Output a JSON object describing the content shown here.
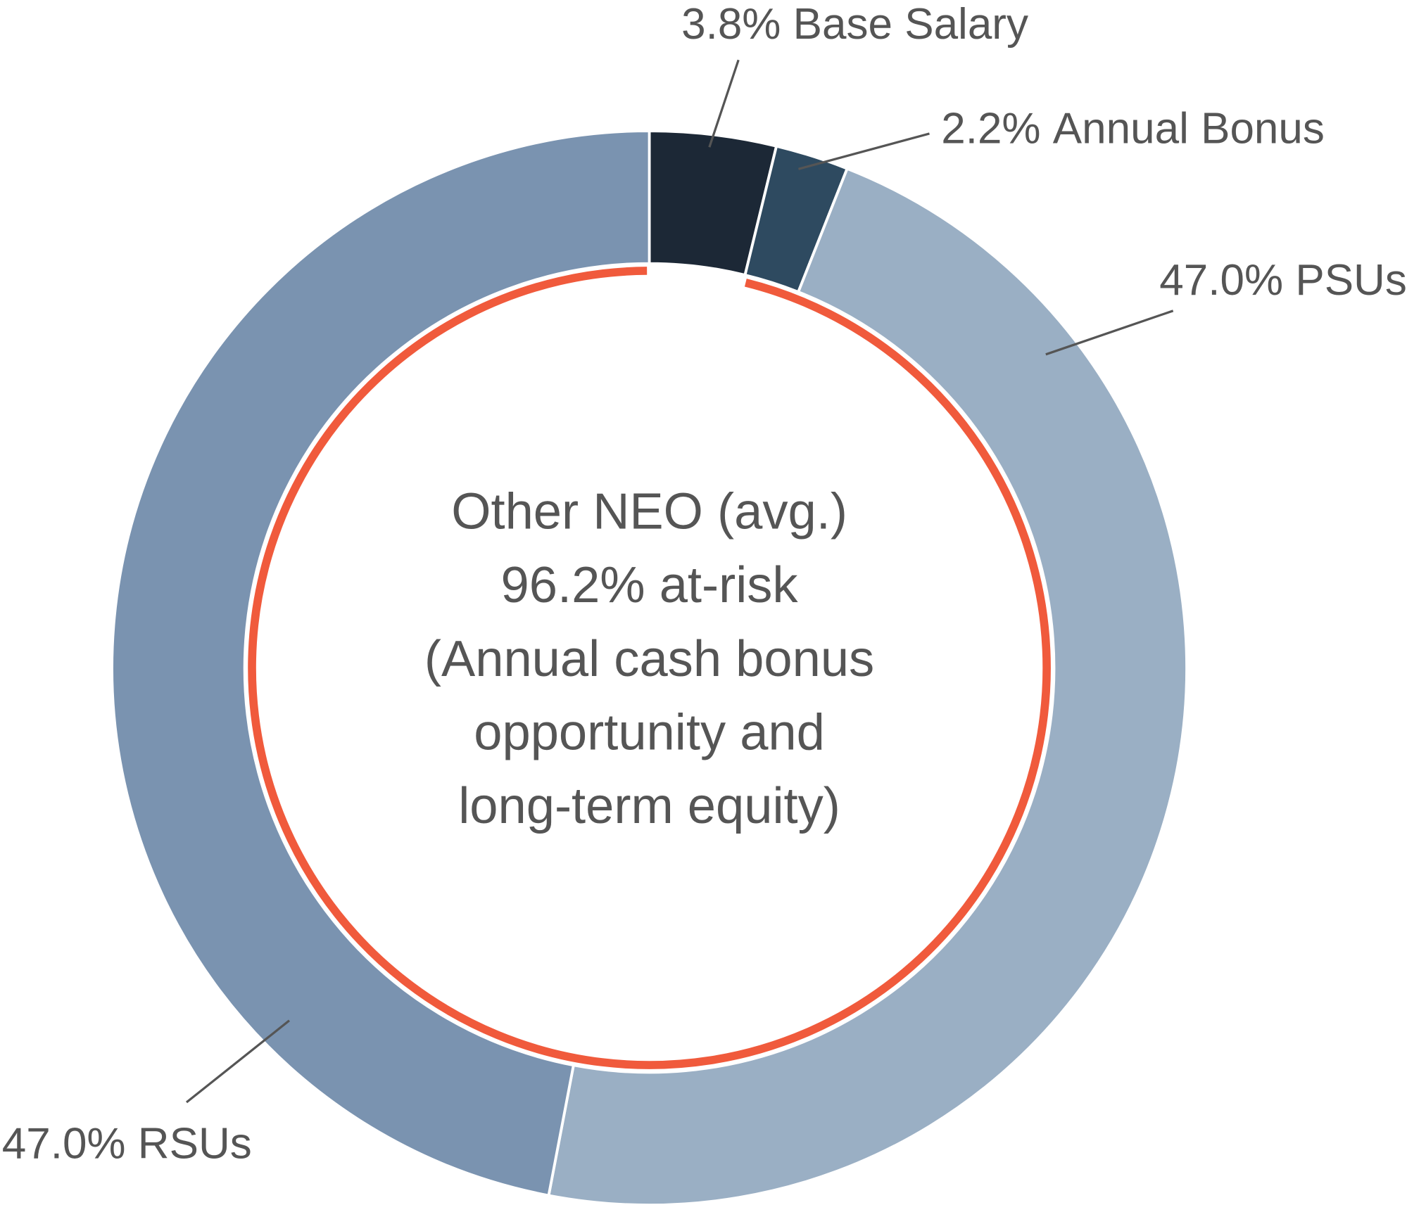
{
  "chart_data": {
    "type": "donut",
    "categories": [
      "Base Salary",
      "Annual Bonus",
      "PSUs",
      "RSUs"
    ],
    "values": [
      3.8,
      2.2,
      47.0,
      47.0
    ],
    "value_labels": [
      "3.8%",
      "2.2%",
      "47.0%",
      "47.0%"
    ],
    "colors": [
      "#1c2836",
      "#2e4a60",
      "#9aafc4",
      "#7a93b0"
    ],
    "center_text": [
      "Other NEO (avg.)",
      "96.2% at-risk",
      "(Annual cash bonus",
      "opportunity and",
      "long-term equity)"
    ],
    "ring_color": "#f05a3c"
  }
}
